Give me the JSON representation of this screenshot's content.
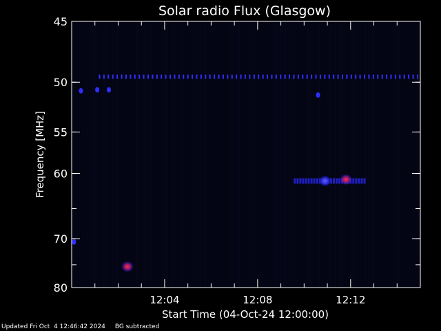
{
  "chart_data": {
    "type": "heatmap",
    "title": "Solar radio Flux (Glasgow)",
    "xlabel": "Start Time (04-Oct-24 12:00:00)",
    "ylabel": "Frequency [MHz]",
    "xlim_minutes": [
      0,
      15
    ],
    "ylim": [
      45,
      80
    ],
    "y_ticks": [
      45,
      50,
      55,
      60,
      70,
      80
    ],
    "x_ticks": [
      {
        "minute": 4,
        "label": "12:04"
      },
      {
        "minute": 8,
        "label": "12:08"
      },
      {
        "minute": 12,
        "label": "12:12"
      }
    ],
    "hotspots": [
      {
        "minute": 2.4,
        "freq": 75.4,
        "intensity": "high"
      },
      {
        "minute": 10.9,
        "freq": 61.0,
        "intensity": "medium"
      },
      {
        "minute": 11.8,
        "freq": 60.8,
        "intensity": "high"
      },
      {
        "minute": 0.1,
        "freq": 70.6,
        "intensity": "low"
      },
      {
        "minute": 0.4,
        "freq": 50.8,
        "intensity": "low"
      },
      {
        "minute": 1.1,
        "freq": 50.7,
        "intensity": "low"
      },
      {
        "minute": 1.6,
        "freq": 50.7,
        "intensity": "low"
      },
      {
        "minute": 10.6,
        "freq": 51.2,
        "intensity": "low"
      }
    ],
    "band": {
      "freq": 49.5,
      "minute_start": 1.2,
      "minute_end": 15.0
    },
    "emission_band": {
      "freq": 61.0,
      "minute_start": 9.6,
      "minute_end": 12.7
    },
    "colors": {
      "background": "#000000",
      "plot_bg": "#050616",
      "low": "#2a2aff",
      "high": "#ff2020",
      "axis": "#ffffff"
    }
  },
  "footer": {
    "updated": "Updated Fri Oct  4 12:46:42 2024",
    "note": "BG subtracted"
  }
}
